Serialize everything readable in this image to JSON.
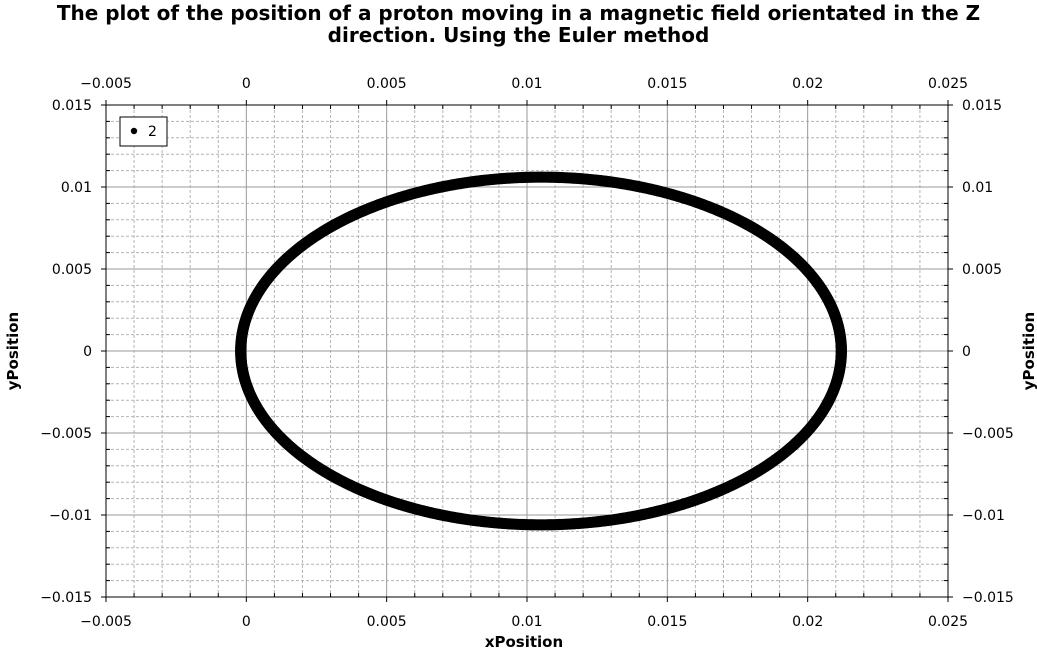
{
  "chart_data": {
    "type": "scatter",
    "title_lines": [
      "The plot of the position of a proton moving in a magnetic field orientated in the Z",
      "direction. Using the Euler method"
    ],
    "xlabel": "xPosition",
    "ylabel": "yPosition",
    "xlim": [
      -0.005,
      0.025
    ],
    "ylim": [
      -0.015,
      0.015
    ],
    "x_ticks": [
      -0.005,
      0,
      0.005,
      0.01,
      0.015,
      0.02,
      0.025
    ],
    "x_tick_labels": [
      "−0.005",
      "0",
      "0.005",
      "0.01",
      "0.015",
      "0.02",
      "0.025"
    ],
    "y_ticks": [
      -0.015,
      -0.01,
      -0.005,
      0,
      0.005,
      0.01,
      0.015
    ],
    "y_tick_labels": [
      "−0.015",
      "−0.01",
      "−0.005",
      "0",
      "0.005",
      "0.01",
      "0.015"
    ],
    "grid": true,
    "legend": {
      "position": "top-left",
      "entries": [
        "2"
      ]
    },
    "series": [
      {
        "name": "2",
        "color": "#000000",
        "marker": "circle",
        "shape": "ellipse",
        "center": [
          0.0105,
          0.0
        ],
        "x_extent": [
          -0.0002,
          0.0212
        ],
        "y_extent": [
          -0.0106,
          0.0106
        ]
      }
    ]
  }
}
